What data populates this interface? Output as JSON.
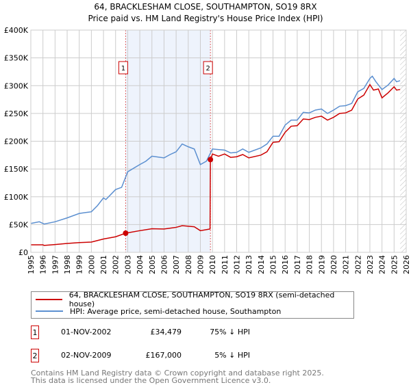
{
  "chart_data": {
    "type": "line",
    "title": "64, BRACKLESHAM CLOSE, SOUTHAMPTON, SO19 8RX",
    "subtitle": "Price paid vs. HM Land Registry's House Price Index (HPI)",
    "xlim": [
      1995,
      2026
    ],
    "ylim": [
      0,
      400000
    ],
    "yticks": [
      {
        "v": 0,
        "label": "£0"
      },
      {
        "v": 50000,
        "label": "£50K"
      },
      {
        "v": 100000,
        "label": "£100K"
      },
      {
        "v": 150000,
        "label": "£150K"
      },
      {
        "v": 200000,
        "label": "£200K"
      },
      {
        "v": 250000,
        "label": "£250K"
      },
      {
        "v": 300000,
        "label": "£300K"
      },
      {
        "v": 350000,
        "label": "£350K"
      },
      {
        "v": 400000,
        "label": "£400K"
      }
    ],
    "xticks": [
      "1995",
      "1996",
      "1997",
      "1998",
      "1999",
      "2000",
      "2001",
      "2002",
      "2003",
      "2004",
      "2005",
      "2006",
      "2007",
      "2008",
      "2009",
      "2010",
      "2011",
      "2012",
      "2013",
      "2014",
      "2015",
      "2016",
      "2017",
      "2018",
      "2019",
      "2020",
      "2021",
      "2022",
      "2023",
      "2024",
      "2025",
      "2026"
    ],
    "grid": true,
    "shaded_range": [
      2002.83,
      2009.83
    ],
    "forecast_hatch_from": 2025.5,
    "series": [
      {
        "name": "64, BRACKLESHAM CLOSE, SOUTHAMPTON, SO19 8RX (semi-detached house)",
        "color": "#cc0000",
        "x": [
          1995,
          1996,
          1996.1,
          1997,
          1998,
          1999,
          2000,
          2001,
          2002,
          2002.83,
          2004,
          2005,
          2006,
          2007,
          2007.5,
          2008.5,
          2009,
          2009.8,
          2009.83,
          2010,
          2010.5,
          2011,
          2011.5,
          2012,
          2012.5,
          2013,
          2014,
          2014.5,
          2015,
          2015.5,
          2016,
          2016.5,
          2017,
          2017.5,
          2018,
          2018.5,
          2019,
          2019.5,
          2020,
          2020.5,
          2021,
          2021.5,
          2022,
          2022.5,
          2023,
          2023.3,
          2023.7,
          2024,
          2024.5,
          2025,
          2025.2,
          2025.5
        ],
        "y": [
          13500,
          13500,
          12500,
          14000,
          16000,
          17500,
          18500,
          24000,
          28000,
          34479,
          39000,
          42500,
          42000,
          45000,
          48000,
          46000,
          39000,
          42000,
          167000,
          177000,
          173000,
          177000,
          171000,
          172000,
          176000,
          170000,
          175000,
          181000,
          198000,
          199000,
          216000,
          227000,
          228000,
          240000,
          239000,
          243000,
          245000,
          238000,
          243000,
          250000,
          251000,
          256000,
          276000,
          283000,
          302000,
          292000,
          294000,
          278000,
          287000,
          298000,
          292000,
          293000
        ]
      },
      {
        "name": "HPI: Average price, semi-detached house, Southampton",
        "color": "#5b8fd0",
        "x": [
          1995,
          1995.7,
          1996.1,
          1997,
          1998,
          1999,
          2000,
          2000.5,
          2001,
          2001.2,
          2002,
          2002.5,
          2003,
          2004,
          2004.5,
          2005,
          2006,
          2006.5,
          2007,
          2007.5,
          2008,
          2008.5,
          2009,
          2009.5,
          2010,
          2011,
          2011.5,
          2012,
          2012.5,
          2013,
          2014,
          2014.5,
          2015,
          2015.5,
          2016,
          2016.5,
          2017,
          2017.5,
          2018,
          2018.5,
          2019,
          2019.5,
          2020,
          2020.5,
          2021,
          2021.5,
          2022,
          2022.5,
          2023,
          2023.2,
          2023.5,
          2024,
          2024.5,
          2025,
          2025.2,
          2025.5
        ],
        "y": [
          52000,
          55000,
          51000,
          55000,
          62000,
          70000,
          73000,
          84000,
          98000,
          95000,
          113000,
          117000,
          145000,
          158000,
          164000,
          173000,
          170000,
          176000,
          181000,
          195000,
          190000,
          186000,
          158000,
          164000,
          186000,
          184000,
          179000,
          180000,
          186000,
          180000,
          188000,
          195000,
          209000,
          209000,
          229000,
          238000,
          238000,
          252000,
          251000,
          256000,
          258000,
          250000,
          256000,
          263000,
          264000,
          268000,
          289000,
          295000,
          313000,
          317000,
          307000,
          293000,
          301000,
          313000,
          307000,
          309000
        ]
      }
    ],
    "markers": [
      {
        "id": "1",
        "x": 2002.83,
        "y": 34479
      },
      {
        "id": "2",
        "x": 2009.83,
        "y": 167000
      }
    ]
  },
  "legend": {
    "red": "64, BRACKLESHAM CLOSE, SOUTHAMPTON, SO19 8RX (semi-detached house)",
    "blue": "HPI: Average price, semi-detached house, Southampton"
  },
  "transactions": [
    {
      "id": "1",
      "date": "01-NOV-2002",
      "price": "£34,479",
      "hpi": "75% ↓ HPI"
    },
    {
      "id": "2",
      "date": "02-NOV-2009",
      "price": "£167,000",
      "hpi": "5% ↓ HPI"
    }
  ],
  "footer": {
    "line1": "Contains HM Land Registry data © Crown copyright and database right 2025.",
    "line2": "This data is licensed under the Open Government Licence v3.0."
  }
}
